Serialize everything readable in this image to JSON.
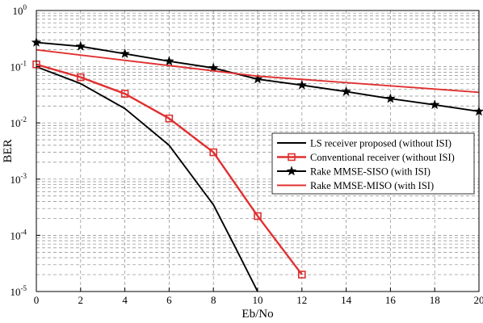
{
  "chart_data": {
    "type": "line",
    "xlabel": "Eb/No",
    "ylabel": "BER",
    "xlim": [
      0,
      20
    ],
    "ylim": [
      1e-05,
      1
    ],
    "yscale": "log",
    "grid": "on (dashed, with minor log gridlines)",
    "legend_position": "right, lower-middle",
    "x_ticks": [
      "0",
      "2",
      "4",
      "6",
      "8",
      "10",
      "12",
      "14",
      "16",
      "18",
      "20"
    ],
    "y_ticks": [
      {
        "base": "10",
        "exp": "0"
      },
      {
        "base": "10",
        "exp": "-1"
      },
      {
        "base": "10",
        "exp": "-2"
      },
      {
        "base": "10",
        "exp": "-3"
      },
      {
        "base": "10",
        "exp": "-4"
      },
      {
        "base": "10",
        "exp": "-5"
      }
    ],
    "series": [
      {
        "name": "LS receiver proposed (without ISI)",
        "color": "#000000",
        "marker": "none",
        "x": [
          0,
          2,
          4,
          6,
          8,
          9,
          10
        ],
        "y": [
          0.1,
          0.05,
          0.018,
          0.004,
          0.00035,
          6e-05,
          1e-05
        ]
      },
      {
        "name": "Conventional receiver (without ISI)",
        "color": "#e03030",
        "marker": "square",
        "x": [
          0,
          2,
          4,
          6,
          8,
          10,
          12
        ],
        "y": [
          0.11,
          0.065,
          0.033,
          0.012,
          0.003,
          0.00022,
          2e-05
        ]
      },
      {
        "name": "Rake MMSE-SISO (with ISI)",
        "color": "#000000",
        "marker": "star",
        "x": [
          0,
          2,
          4,
          6,
          8,
          10,
          12,
          14,
          16,
          18,
          20
        ],
        "y": [
          0.27,
          0.23,
          0.17,
          0.125,
          0.095,
          0.06,
          0.047,
          0.036,
          0.027,
          0.021,
          0.016
        ]
      },
      {
        "name": "Rake MMSE-MISO (with ISI)",
        "color": "#e03030",
        "marker": "none",
        "x": [
          0,
          10,
          20
        ],
        "y": [
          0.2,
          0.068,
          0.035
        ]
      }
    ]
  }
}
